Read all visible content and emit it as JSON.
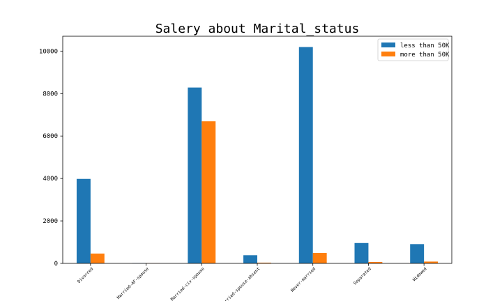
{
  "chart_data": {
    "type": "bar",
    "title": "Salery about Marital_status",
    "xlabel": "",
    "ylabel": "",
    "categories": [
      "Divorced",
      "Married-AF-spouse",
      "Married-civ-spouse",
      "Married-spouse-absent",
      "Never-married",
      "Separated",
      "Widowed"
    ],
    "series": [
      {
        "name": "less than 50K",
        "color": "#1f77b4",
        "values": [
          3980,
          13,
          8284,
          384,
          10192,
          959,
          908
        ]
      },
      {
        "name": "more than 50K",
        "color": "#ff7f0e",
        "values": [
          463,
          10,
          6692,
          34,
          491,
          66,
          85
        ]
      }
    ],
    "ylim": [
      0,
      10700
    ],
    "yticks": [
      0,
      2000,
      4000,
      6000,
      8000,
      10000
    ],
    "grid": false,
    "legend_position": "top-right"
  }
}
